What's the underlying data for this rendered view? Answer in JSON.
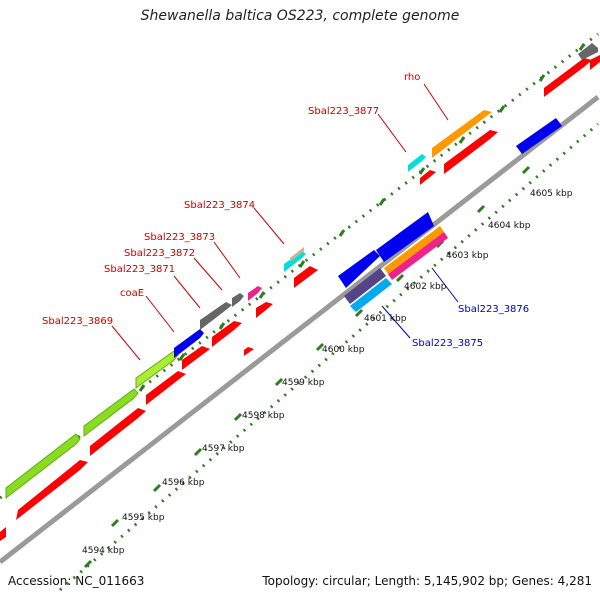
{
  "title": "Shewanella baltica OS223, complete genome",
  "footer": {
    "accession": "Accession: NC_011663",
    "summary": "Topology: circular; Length: 5,145,902 bp; Genes: 4,281"
  },
  "colors": {
    "backbone": "#9a9a9a",
    "tick": "#2e7d1f",
    "forward_label": "#cc0000",
    "reverse_label": "#0000cc",
    "red": "#ff0000",
    "blue": "#0000ee",
    "green": "#88dd22",
    "gray": "#666666",
    "orange": "#ff9900",
    "cyan": "#00dddd",
    "tan": "#c8b48c",
    "magenta": "#ee2288",
    "purple": "#554488"
  },
  "scale_labels": [
    "4594 kbp",
    "4595 kbp",
    "4596 kbp",
    "4597 kbp",
    "4598 kbp",
    "4599 kbp",
    "4600 kbp",
    "4601 kbp",
    "4602 kbp",
    "4603 kbp",
    "4604 kbp",
    "4605 kbp"
  ],
  "gene_labels": [
    {
      "text": "rho",
      "strand": "forward"
    },
    {
      "text": "Sbal223_3877",
      "strand": "forward"
    },
    {
      "text": "Sbal223_3874",
      "strand": "forward"
    },
    {
      "text": "Sbal223_3873",
      "strand": "forward"
    },
    {
      "text": "Sbal223_3872",
      "strand": "forward"
    },
    {
      "text": "Sbal223_3871",
      "strand": "forward"
    },
    {
      "text": "coaE",
      "strand": "forward"
    },
    {
      "text": "Sbal223_3869",
      "strand": "forward"
    },
    {
      "text": "Sbal223_3876",
      "strand": "reverse"
    },
    {
      "text": "Sbal223_3875",
      "strand": "reverse"
    }
  ]
}
